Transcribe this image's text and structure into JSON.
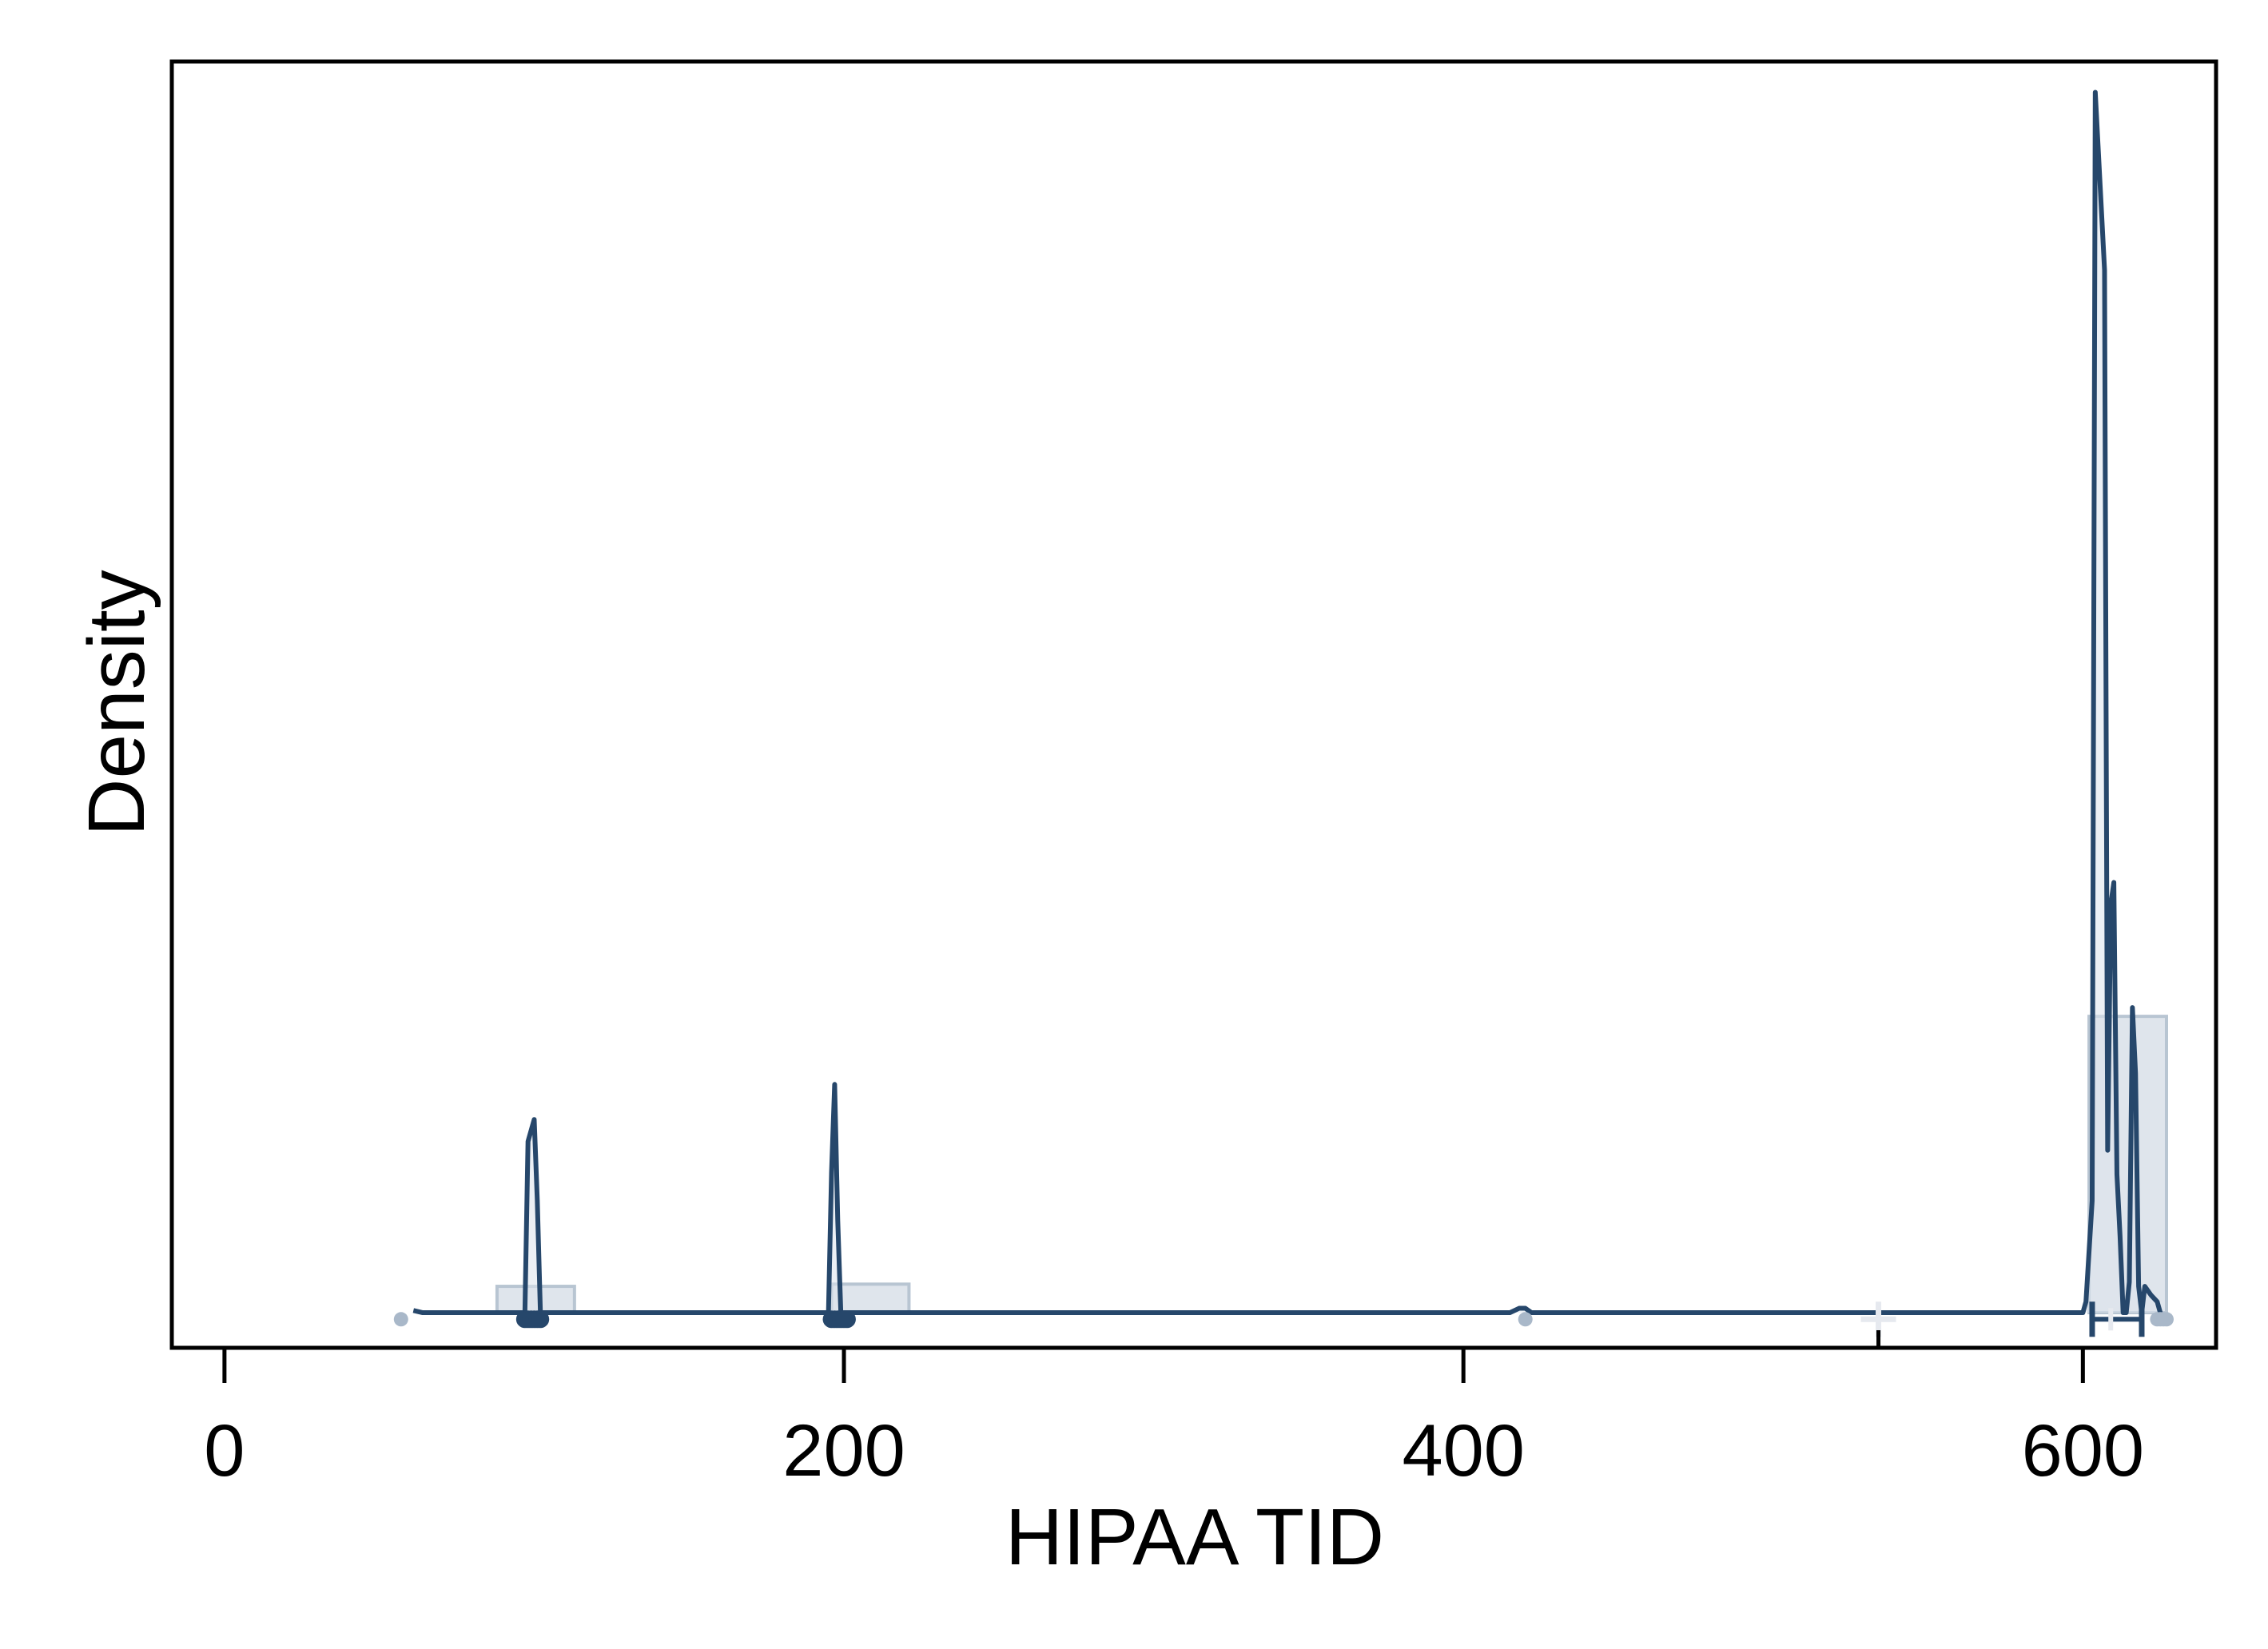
{
  "chart_data": {
    "type": "area",
    "xlabel": "HIPAA TID",
    "ylabel": "Density",
    "xlim": [
      -17,
      643
    ],
    "ylim": [
      -0.0016,
      0.057
    ],
    "x_ticks": [
      0,
      200,
      400,
      600
    ],
    "x_tick_labels": [
      "0",
      "200",
      "400",
      "600"
    ],
    "y_ticks_shown": false,
    "grid": false,
    "legend": "none",
    "colors": {
      "line": "#26476b",
      "fill": "#dde4ec",
      "bar_fill": "#d9e1e9",
      "bar_edge": "#b8c5d2",
      "points_light": "#a9b8c9",
      "mean_marker": "#e6e9ef",
      "axis": "#000000"
    },
    "histogram": [
      {
        "x0": 88,
        "x1": 113,
        "density": 0.0012
      },
      {
        "x0": 196,
        "x1": 221,
        "density": 0.0013
      },
      {
        "x0": 602,
        "x1": 627,
        "density": 0.0135
      }
    ],
    "density_curve": {
      "x": [
        61,
        64,
        87,
        97,
        98,
        100,
        101,
        102,
        103,
        104,
        110,
        193,
        195,
        196,
        197,
        198,
        199,
        200,
        203,
        415,
        418,
        420,
        422,
        426,
        440,
        600,
        601,
        603,
        604,
        607,
        608,
        609,
        610,
        611,
        612,
        613,
        614,
        615,
        616,
        617,
        618,
        619,
        620,
        621,
        622,
        624,
        625
      ],
      "y": [
        0.0001,
        0,
        0,
        0,
        0.0078,
        0.0088,
        0.0051,
        0,
        0,
        0,
        0,
        0,
        0,
        0.0064,
        0.0104,
        0.0042,
        0,
        0,
        0,
        0,
        0.0002,
        0.0002,
        0,
        0,
        0,
        0,
        0.0005,
        0.0051,
        0.0556,
        0.0475,
        0.0074,
        0.0186,
        0.0196,
        0.0063,
        0.0035,
        0,
        0,
        0.0014,
        0.0139,
        0.0109,
        0.0012,
        0,
        0.0012,
        0.001,
        0.0008,
        0.0005,
        0
      ]
    },
    "data_points": {
      "light": [
        57,
        420,
        624,
        625,
        626,
        627
      ],
      "dark": [
        97,
        98,
        99,
        100,
        101,
        102,
        196,
        197,
        198,
        199,
        200,
        201
      ]
    },
    "summary_markers": {
      "mean": 534,
      "median": 609,
      "q1": 603,
      "q3": 619
    }
  }
}
